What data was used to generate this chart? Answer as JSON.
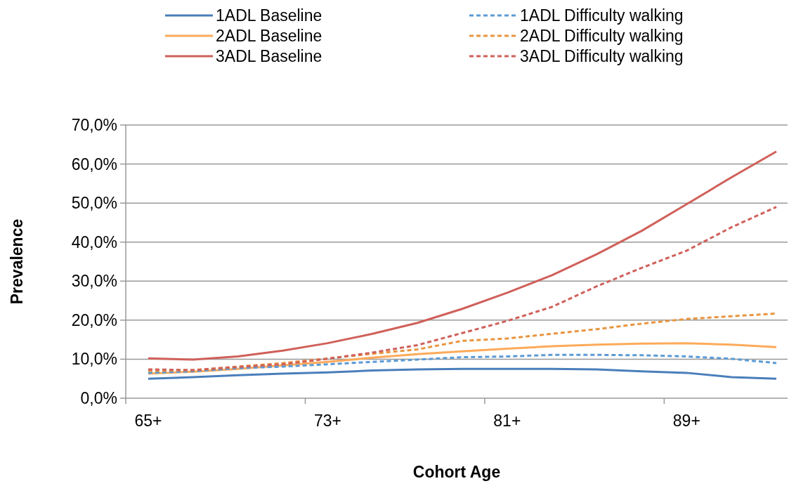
{
  "chart_data": {
    "type": "line",
    "xlabel": "Cohort Age",
    "ylabel": "Prevalence",
    "categories": [
      "65+",
      null,
      null,
      null,
      "73+",
      null,
      null,
      null,
      "81+",
      null,
      null,
      null,
      "89+",
      null,
      null
    ],
    "ylim": [
      0,
      70
    ],
    "yticks": [
      {
        "value": 0,
        "label": "0,0%"
      },
      {
        "value": 10,
        "label": "10,0%"
      },
      {
        "value": 20,
        "label": "20,0%"
      },
      {
        "value": 30,
        "label": "30,0%"
      },
      {
        "value": 40,
        "label": "40,0%"
      },
      {
        "value": 50,
        "label": "50,0%"
      },
      {
        "value": 60,
        "label": "60,0%"
      },
      {
        "value": 70,
        "label": "70,0%"
      }
    ],
    "grid": "y",
    "legend": "top",
    "marker": "none",
    "series": [
      {
        "name": "1ADL Baseline",
        "color": "#4a7ebb",
        "line_style": "solid",
        "values": [
          5.0,
          5.4,
          5.9,
          6.3,
          6.6,
          7.1,
          7.4,
          7.5,
          7.5,
          7.5,
          7.4,
          6.9,
          6.5,
          5.4,
          5.0
        ]
      },
      {
        "name": "2ADL Baseline",
        "color": "#fdaa5a",
        "line_style": "solid",
        "values": [
          6.3,
          6.8,
          7.5,
          8.4,
          9.3,
          10.4,
          11.3,
          12.0,
          12.7,
          13.3,
          13.7,
          14.0,
          14.1,
          13.7,
          13.1
        ]
      },
      {
        "name": "3ADL Baseline",
        "color": "#d0605a",
        "line_style": "solid",
        "values": [
          10.2,
          9.9,
          10.7,
          12.2,
          14.1,
          16.5,
          19.3,
          22.9,
          27.0,
          31.5,
          36.9,
          42.9,
          49.7,
          56.6,
          63.2
        ]
      },
      {
        "name": "1ADL Difficulty walking",
        "color": "#5b9bd5",
        "line_style": "dashed",
        "values": [
          6.5,
          6.9,
          7.7,
          8.1,
          8.7,
          9.3,
          9.9,
          10.5,
          10.7,
          11.1,
          11.1,
          11.0,
          10.7,
          10.1,
          9.0
        ]
      },
      {
        "name": "2ADL Difficulty walking",
        "color": "#e8953f",
        "line_style": "dashed",
        "values": [
          7.0,
          7.2,
          8.1,
          9.0,
          10.2,
          11.4,
          12.5,
          14.7,
          15.3,
          16.5,
          17.7,
          19.1,
          20.3,
          21.0,
          21.7
        ]
      },
      {
        "name": "3ADL Difficulty walking",
        "color": "#d0605a",
        "line_style": "dashed",
        "values": [
          7.4,
          7.2,
          8.0,
          8.7,
          10.1,
          11.7,
          13.6,
          16.7,
          19.8,
          23.4,
          28.7,
          33.4,
          37.8,
          43.8,
          49.0
        ]
      }
    ]
  }
}
